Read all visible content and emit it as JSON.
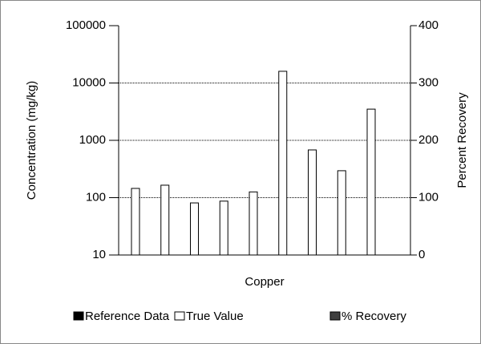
{
  "chart_data": {
    "type": "bar",
    "xlabel": "Copper",
    "ylabel": "Concentration (mg/kg)",
    "y2label": "Percent Recovery",
    "categories": [
      null,
      null,
      null,
      null,
      null,
      null,
      null,
      null,
      null
    ],
    "series": [
      {
        "name": "Reference Data",
        "color": "#000000",
        "values": [
          null,
          null,
          null,
          null,
          null,
          null,
          null,
          null,
          null
        ]
      },
      {
        "name": "True Value",
        "color": "#ffffff",
        "values": [
          145,
          165,
          81,
          87,
          126,
          16000,
          680,
          295,
          3500
        ]
      },
      {
        "name": "% Recovery",
        "color": "#404040",
        "axis": "y2",
        "values": [
          null,
          null,
          null,
          null,
          null,
          null,
          null,
          null,
          null
        ]
      }
    ],
    "ylog": true,
    "ylim": [
      10,
      100000
    ],
    "yticks": [
      10,
      100,
      1000,
      10000,
      100000
    ],
    "y2lim": [
      0,
      400
    ],
    "y2ticks": [
      0,
      100,
      200,
      300,
      400
    ],
    "grid": true,
    "legend": "bottom"
  }
}
